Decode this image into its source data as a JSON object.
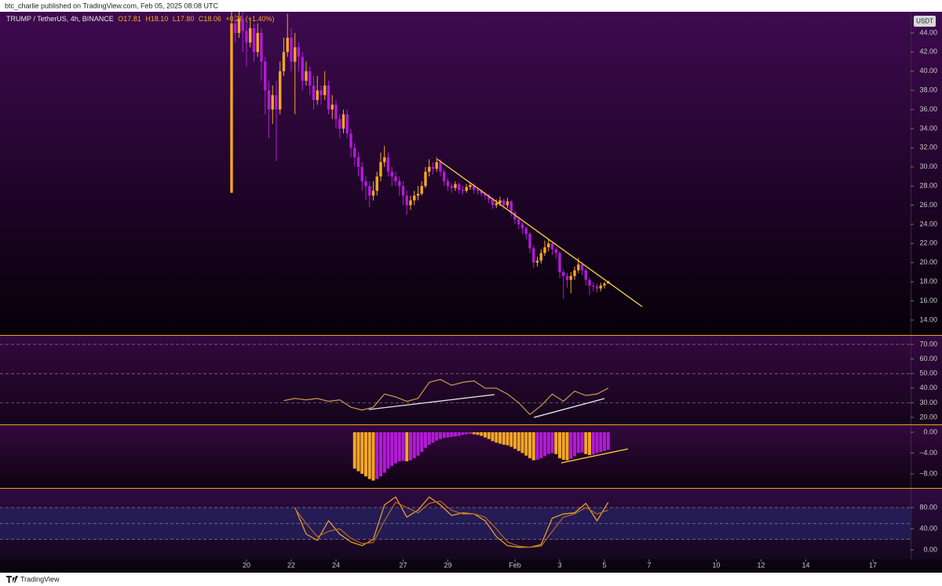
{
  "header": {
    "byline": "btc_charlie published on TradingView.com, Feb 05, 2025 08:08 UTC",
    "symbol": "TRUMP / TetherUS, 4h, BINANCE",
    "quote": [
      "O17.81",
      "H18.10",
      "L17.80",
      "C18.06",
      "+0.25 (+1.40%)"
    ],
    "currency": "USDT"
  },
  "footer": {
    "brand": "TradingView"
  },
  "chart_data": [
    {
      "type": "candlestick",
      "up_color": "#f5a623",
      "down_color": "#b31ad6",
      "open": [
        27.3,
        45,
        44,
        45.5,
        44.2,
        43,
        44.5,
        42,
        44,
        41,
        38,
        36,
        37.5,
        36,
        40,
        42,
        43.5,
        41,
        42.5,
        41.5,
        39,
        40,
        38.5,
        37,
        38,
        37.5,
        38.5,
        36,
        36.5,
        35,
        34,
        35.5,
        33.5,
        32,
        31,
        30,
        28.5,
        28,
        27,
        27.5,
        29,
        30.5,
        31,
        29.5,
        29,
        28.5,
        28,
        27,
        26,
        26.5,
        27,
        27.2,
        28,
        29.5,
        30,
        29.8,
        30.5,
        29.5,
        28.5,
        28,
        27.8,
        28.2,
        27.6,
        27.5,
        27.9,
        28.1,
        27.6,
        27.5,
        27.2,
        27,
        26.6,
        26,
        26.2,
        26.5,
        26,
        26.4,
        25.2,
        24.5,
        24,
        23.6,
        23,
        21.5,
        20,
        20.2,
        21,
        21.6,
        22,
        21.4,
        21,
        19,
        18.6,
        18.2,
        18.6,
        19.2,
        19.8,
        19.2,
        18.2,
        17.6,
        17.5,
        17.3,
        17.6,
        17.81
      ],
      "high": [
        47,
        46,
        47,
        46.5,
        45,
        45.5,
        45,
        45,
        44.5,
        41.5,
        39,
        38.5,
        39,
        41,
        43.5,
        46,
        44.5,
        44,
        43,
        42,
        41,
        40.5,
        39.5,
        39.5,
        38.5,
        40,
        39,
        37.5,
        37,
        35.5,
        36,
        36,
        34,
        32.5,
        31.5,
        30.5,
        29,
        28.5,
        28.5,
        29.5,
        31.5,
        32.2,
        31.5,
        30,
        29.5,
        29,
        28.5,
        27.5,
        27,
        27.5,
        28,
        28.5,
        30,
        30.8,
        30.5,
        31,
        30.8,
        29.8,
        28.8,
        28.3,
        28.5,
        28.4,
        28,
        28.2,
        28.4,
        28.3,
        27.9,
        27.7,
        27.4,
        27.2,
        26.8,
        26.6,
        26.9,
        26.7,
        26.8,
        26.5,
        25.4,
        24.8,
        24.2,
        23.8,
        23.2,
        21.8,
        20.6,
        21.4,
        22.3,
        22.5,
        22.2,
        21.6,
        21.2,
        19.3,
        18.9,
        19,
        19.6,
        20.5,
        20,
        19.4,
        18.4,
        18,
        17.8,
        17.9,
        18,
        18.1
      ],
      "low": [
        27.3,
        43,
        43.5,
        42,
        40.5,
        42.5,
        41,
        41.5,
        39,
        35.5,
        33,
        34.5,
        30.6,
        35.5,
        39.5,
        41.5,
        40,
        35.5,
        40,
        38,
        38.5,
        37.5,
        36,
        36.5,
        36.5,
        37,
        35.5,
        35,
        34,
        33,
        33.5,
        33,
        31,
        30,
        29,
        27.5,
        26.5,
        25.8,
        26.5,
        27,
        28.5,
        30,
        29,
        28,
        28,
        27,
        26,
        25,
        25.5,
        26,
        26.5,
        27,
        27.8,
        29,
        29.2,
        29.5,
        29,
        28,
        27.5,
        27.3,
        27.5,
        27.2,
        27.1,
        27.3,
        27.6,
        27.2,
        27.1,
        26.9,
        26.6,
        26.2,
        25.6,
        25.7,
        25.9,
        25.6,
        25.7,
        24.8,
        24,
        23.5,
        23,
        22.4,
        21,
        19.4,
        19.6,
        19.9,
        20.7,
        21.2,
        20.8,
        20.4,
        18.4,
        16.2,
        17.4,
        16.8,
        18.2,
        18.9,
        18.7,
        17.6,
        16.6,
        17,
        16.9,
        17,
        17.3,
        17.8
      ],
      "close": [
        45,
        44,
        45.5,
        44.2,
        43,
        44.5,
        42,
        44,
        41,
        38,
        36,
        37.5,
        36,
        40,
        42,
        43.5,
        41,
        42.5,
        41.5,
        39,
        40,
        38.5,
        37,
        38,
        37.5,
        38.5,
        36,
        36.5,
        35,
        34,
        35.5,
        33.5,
        32,
        31,
        30,
        28.5,
        28,
        27,
        27.5,
        29,
        30.5,
        31,
        29.5,
        29,
        28.5,
        28,
        27,
        26,
        26.5,
        27,
        27.2,
        28,
        29.5,
        30,
        29.8,
        30.5,
        29.5,
        28.5,
        28,
        27.8,
        28.2,
        27.6,
        27.5,
        27.9,
        28.1,
        27.6,
        27.5,
        27.2,
        27,
        26.6,
        26,
        26.2,
        26.5,
        26,
        26.4,
        25.2,
        24.5,
        24,
        23.6,
        23,
        21.5,
        20,
        20.2,
        21,
        21.6,
        22,
        21.4,
        21,
        19,
        18.6,
        18.2,
        18.6,
        19.2,
        19.8,
        19.2,
        18.2,
        17.6,
        17.5,
        17.3,
        17.6,
        17.81,
        18.06
      ],
      "xlim": [
        -62.1,
        182.1
      ],
      "xticks": [
        {
          "value": 4,
          "label": "20"
        },
        {
          "value": 16,
          "label": "22"
        },
        {
          "value": 28,
          "label": "24"
        },
        {
          "value": 46,
          "label": "27"
        },
        {
          "value": 58,
          "label": "29"
        },
        {
          "value": 76,
          "label": "Feb"
        },
        {
          "value": 88,
          "label": "3"
        },
        {
          "value": 100,
          "label": "5"
        },
        {
          "value": 112,
          "label": "7"
        },
        {
          "value": 130,
          "label": "10"
        },
        {
          "value": 142,
          "label": "12"
        },
        {
          "value": 154,
          "label": "14"
        },
        {
          "value": 172,
          "label": "17"
        }
      ],
      "ylim": [
        12.44,
        46.21
      ],
      "yticks": [
        {
          "value": 14,
          "label": "14.00"
        },
        {
          "value": 16,
          "label": "16.00"
        },
        {
          "value": 18,
          "label": "18.00"
        },
        {
          "value": 20,
          "label": "20.00"
        },
        {
          "value": 22,
          "label": "22.00"
        },
        {
          "value": 24,
          "label": "24.00"
        },
        {
          "value": 26,
          "label": "26.00"
        },
        {
          "value": 28,
          "label": "28.00"
        },
        {
          "value": 30,
          "label": "30.00"
        },
        {
          "value": 32,
          "label": "32.00"
        },
        {
          "value": 34,
          "label": "34.00"
        },
        {
          "value": 36,
          "label": "36.00"
        },
        {
          "value": 38,
          "label": "38.00"
        },
        {
          "value": 40,
          "label": "40.00"
        },
        {
          "value": 42,
          "label": "42.00"
        },
        {
          "value": 44,
          "label": "44.00"
        }
      ],
      "lines": [
        {
          "color": "#ffd23a",
          "points": [
            [
              55.2,
              30.8
            ],
            [
              110.1,
              15.4
            ]
          ]
        }
      ]
    },
    {
      "type": "line",
      "ylim": [
        15.2,
        75.9
      ],
      "yticks": [
        {
          "value": 20,
          "label": "20.00"
        },
        {
          "value": 30,
          "label": "30.00"
        },
        {
          "value": 40,
          "label": "40.00"
        },
        {
          "value": 50,
          "label": "50.00"
        },
        {
          "value": 60,
          "label": "60.00"
        },
        {
          "value": 70,
          "label": "70.00"
        }
      ],
      "levels": [
        70,
        50,
        30
      ],
      "x": [
        14,
        17,
        20,
        23,
        26,
        29,
        32,
        35,
        38,
        41,
        44,
        47,
        50,
        53,
        56,
        59,
        62,
        65,
        68,
        71,
        74,
        77,
        80,
        83,
        86,
        89,
        92,
        95,
        98,
        101
      ],
      "series": [
        {
          "color": "#c99a4e",
          "values": [
            31.5,
            33,
            32,
            33,
            31,
            32,
            27,
            25,
            27,
            36,
            34,
            31,
            33,
            44,
            46,
            42,
            44,
            45,
            40,
            40,
            36,
            30,
            22,
            28,
            36,
            31,
            38,
            35,
            36,
            40
          ]
        }
      ],
      "lines": [
        {
          "color": "#e6e6e6",
          "points": [
            [
              36.8,
              25.4
            ],
            [
              70.5,
              35.6
            ]
          ]
        },
        {
          "color": "#e6e6e6",
          "points": [
            [
              81.1,
              20
            ],
            [
              100,
              32.9
            ]
          ]
        }
      ]
    },
    {
      "type": "bar",
      "ylim": [
        -10.72,
        1.36
      ],
      "falling_color": "#f5a623",
      "rising_color": "#b31ad6",
      "yticks": [
        {
          "value": 0,
          "label": "0.00"
        },
        {
          "value": -4,
          "label": "−4.00"
        },
        {
          "value": -8,
          "label": "−8.00"
        }
      ],
      "x": [
        33,
        34,
        35,
        36,
        37,
        38,
        39,
        40,
        41,
        42,
        43,
        44,
        45,
        46,
        47,
        48,
        49,
        50,
        51,
        52,
        53,
        54,
        55,
        56,
        57,
        58,
        59,
        60,
        61,
        62,
        63,
        64,
        65,
        66,
        67,
        68,
        69,
        70,
        71,
        72,
        73,
        74,
        75,
        76,
        77,
        78,
        79,
        80,
        81,
        82,
        83,
        84,
        85,
        86,
        87,
        88,
        89,
        90,
        91,
        92,
        93,
        94,
        95,
        96,
        97,
        98,
        99,
        100,
        101
      ],
      "values": [
        -7,
        -7.5,
        -8,
        -8.5,
        -9,
        -9.3,
        -9,
        -8.5,
        -7.8,
        -7,
        -6.5,
        -6,
        -5.6,
        -5.5,
        -5.6,
        -5.4,
        -5,
        -4.5,
        -3.8,
        -3,
        -2.4,
        -2,
        -1.6,
        -1.3,
        -1.1,
        -1,
        -0.9,
        -0.8,
        -0.7,
        -0.5,
        -0.4,
        -0.3,
        -0.4,
        -0.5,
        -0.7,
        -1,
        -1.3,
        -1.7,
        -2,
        -2.2,
        -2.4,
        -2.5,
        -2.8,
        -3.2,
        -3.6,
        -4,
        -4.5,
        -5,
        -5.4,
        -5.3,
        -5,
        -4.6,
        -4.2,
        -4,
        -4.2,
        -5,
        -5.3,
        -5.4,
        -5.1,
        -4.6,
        -4,
        -3.9,
        -4.2,
        -4.4,
        -4.3,
        -4,
        -3.8,
        -3.6,
        -3.4
      ],
      "lines": [
        {
          "color": "#ffd23a",
          "points": [
            [
              88.4,
              -5.9
            ],
            [
              106.3,
              -3.2
            ]
          ]
        }
      ]
    },
    {
      "type": "line",
      "ylim": [
        -17.8,
        115.6
      ],
      "band_color": "#25215e",
      "yticks": [
        {
          "value": 0,
          "label": "0.00"
        },
        {
          "value": 40,
          "label": "40.00"
        },
        {
          "value": 80,
          "label": "80.00"
        }
      ],
      "levels": [
        80,
        50,
        20
      ],
      "x": [
        17,
        20,
        23,
        26,
        29,
        32,
        35,
        38,
        41,
        44,
        47,
        50,
        53,
        56,
        59,
        62,
        65,
        68,
        71,
        74,
        77,
        80,
        83,
        86,
        89,
        92,
        95,
        98,
        101
      ],
      "series": [
        {
          "color": "#f5a623",
          "values": [
            80,
            30,
            18,
            55,
            30,
            15,
            8,
            20,
            85,
            100,
            62,
            75,
            100,
            85,
            65,
            70,
            68,
            55,
            25,
            8,
            5,
            5,
            10,
            60,
            68,
            70,
            88,
            55,
            90
          ]
        },
        {
          "color": "#b36a24",
          "values": [
            78,
            50,
            25,
            35,
            40,
            22,
            12,
            14,
            55,
            90,
            80,
            70,
            88,
            92,
            75,
            68,
            68,
            62,
            40,
            15,
            7,
            5,
            7,
            35,
            62,
            68,
            80,
            68,
            75
          ]
        }
      ]
    }
  ]
}
